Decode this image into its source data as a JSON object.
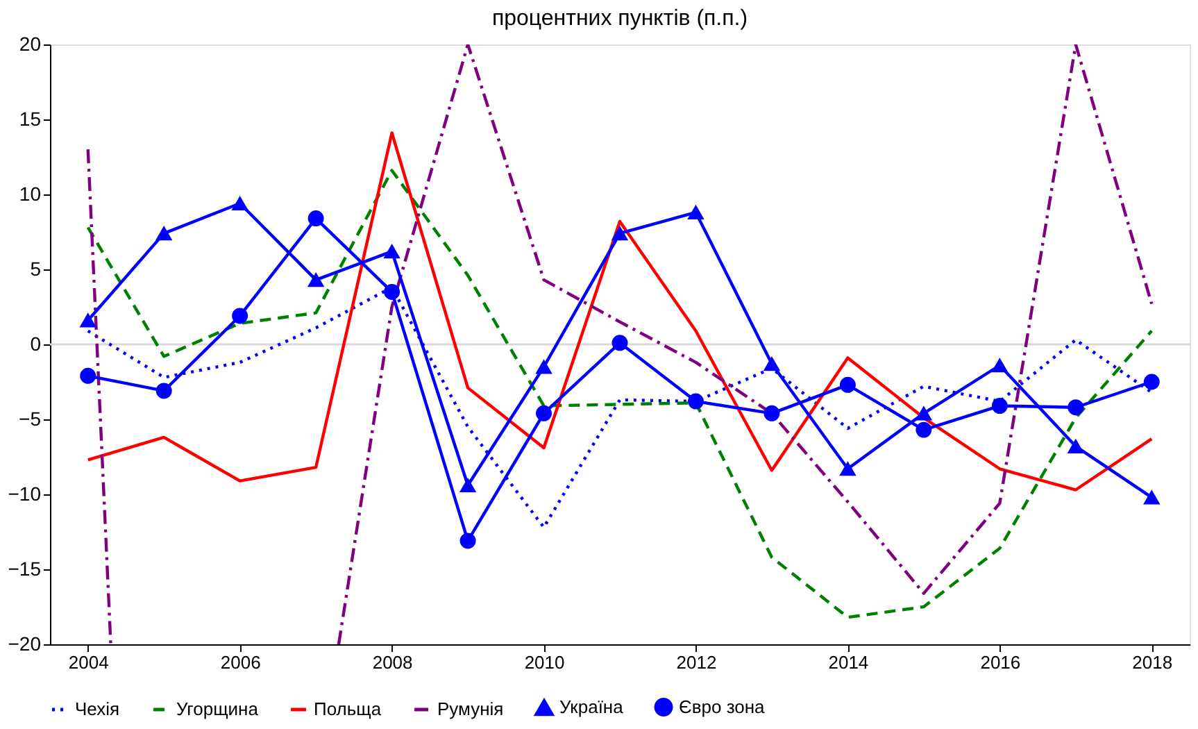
{
  "chart_data": {
    "type": "line",
    "title": "процентних пунктів (п.п.)",
    "x": [
      2004,
      2005,
      2006,
      2007,
      2008,
      2009,
      2010,
      2011,
      2012,
      2013,
      2014,
      2015,
      2016,
      2017,
      2018
    ],
    "series": [
      {
        "name": "Чехія",
        "color": "#0000ff",
        "line_style": "dotted",
        "marker": "none",
        "values": [
          0.9,
          -2.2,
          -1.2,
          1.1,
          3.8,
          -5.5,
          -12.2,
          -3.7,
          -3.8,
          -1.6,
          -5.6,
          -2.8,
          -3.8,
          0.3,
          -3.2
        ]
      },
      {
        "name": "Угорщина",
        "color": "#008000",
        "line_style": "dashed",
        "marker": "none",
        "values": [
          7.8,
          -0.8,
          1.4,
          2.1,
          11.6,
          4.6,
          -4.1,
          -4.0,
          -3.9,
          -14.2,
          -18.2,
          -17.5,
          -13.6,
          -4.9,
          0.9
        ]
      },
      {
        "name": "Польща",
        "color": "#ff0000",
        "line_style": "solid",
        "marker": "none",
        "values": [
          -7.7,
          -6.2,
          -9.1,
          -8.2,
          14.1,
          -2.9,
          -6.9,
          8.2,
          0.9,
          -8.4,
          -0.9,
          -4.9,
          -8.3,
          -9.7,
          -6.3
        ]
      },
      {
        "name": "Румунія",
        "color": "#800080",
        "line_style": "dashdot",
        "marker": "none",
        "x": [
          2004,
          2004.3,
          2005,
          2007.3,
          2008,
          2009,
          2010,
          2011,
          2012,
          2013,
          2014,
          2015,
          2016,
          2017,
          2018
        ],
        "values": [
          13.0,
          -20,
          null,
          -20,
          2.5,
          20,
          4.3,
          1.5,
          -1.2,
          -4.6,
          -10.5,
          -16.6,
          -10.6,
          20,
          2.7
        ]
      },
      {
        "name": "Україна",
        "color": "#0000ff",
        "line_style": "solid",
        "marker": "triangle",
        "values": [
          1.6,
          7.4,
          9.4,
          4.3,
          6.2,
          -9.4,
          -1.5,
          7.4,
          8.8,
          -1.3,
          -8.3,
          -4.6,
          -1.4,
          -6.8,
          -10.2
        ]
      },
      {
        "name": "Євро зона",
        "color": "#0000ff",
        "line_style": "solid",
        "marker": "circle",
        "values": [
          -2.1,
          -3.1,
          1.9,
          8.4,
          3.5,
          -13.1,
          -4.6,
          0.1,
          -3.8,
          -4.6,
          -2.7,
          -5.7,
          -4.1,
          -4.2,
          -2.5
        ]
      }
    ],
    "xlim": [
      2003.5,
      2018.5
    ],
    "xticks": [
      2004,
      2006,
      2008,
      2010,
      2012,
      2014,
      2016,
      2018
    ],
    "ylim": [
      -20,
      20
    ],
    "yticks": [
      -20,
      -15,
      -10,
      -5,
      0,
      5,
      10,
      15,
      20
    ],
    "ref_lines": [
      {
        "axis": "y",
        "value": 0,
        "color": "#d9d9d9"
      }
    ],
    "grid": false,
    "legend": "bottom"
  }
}
